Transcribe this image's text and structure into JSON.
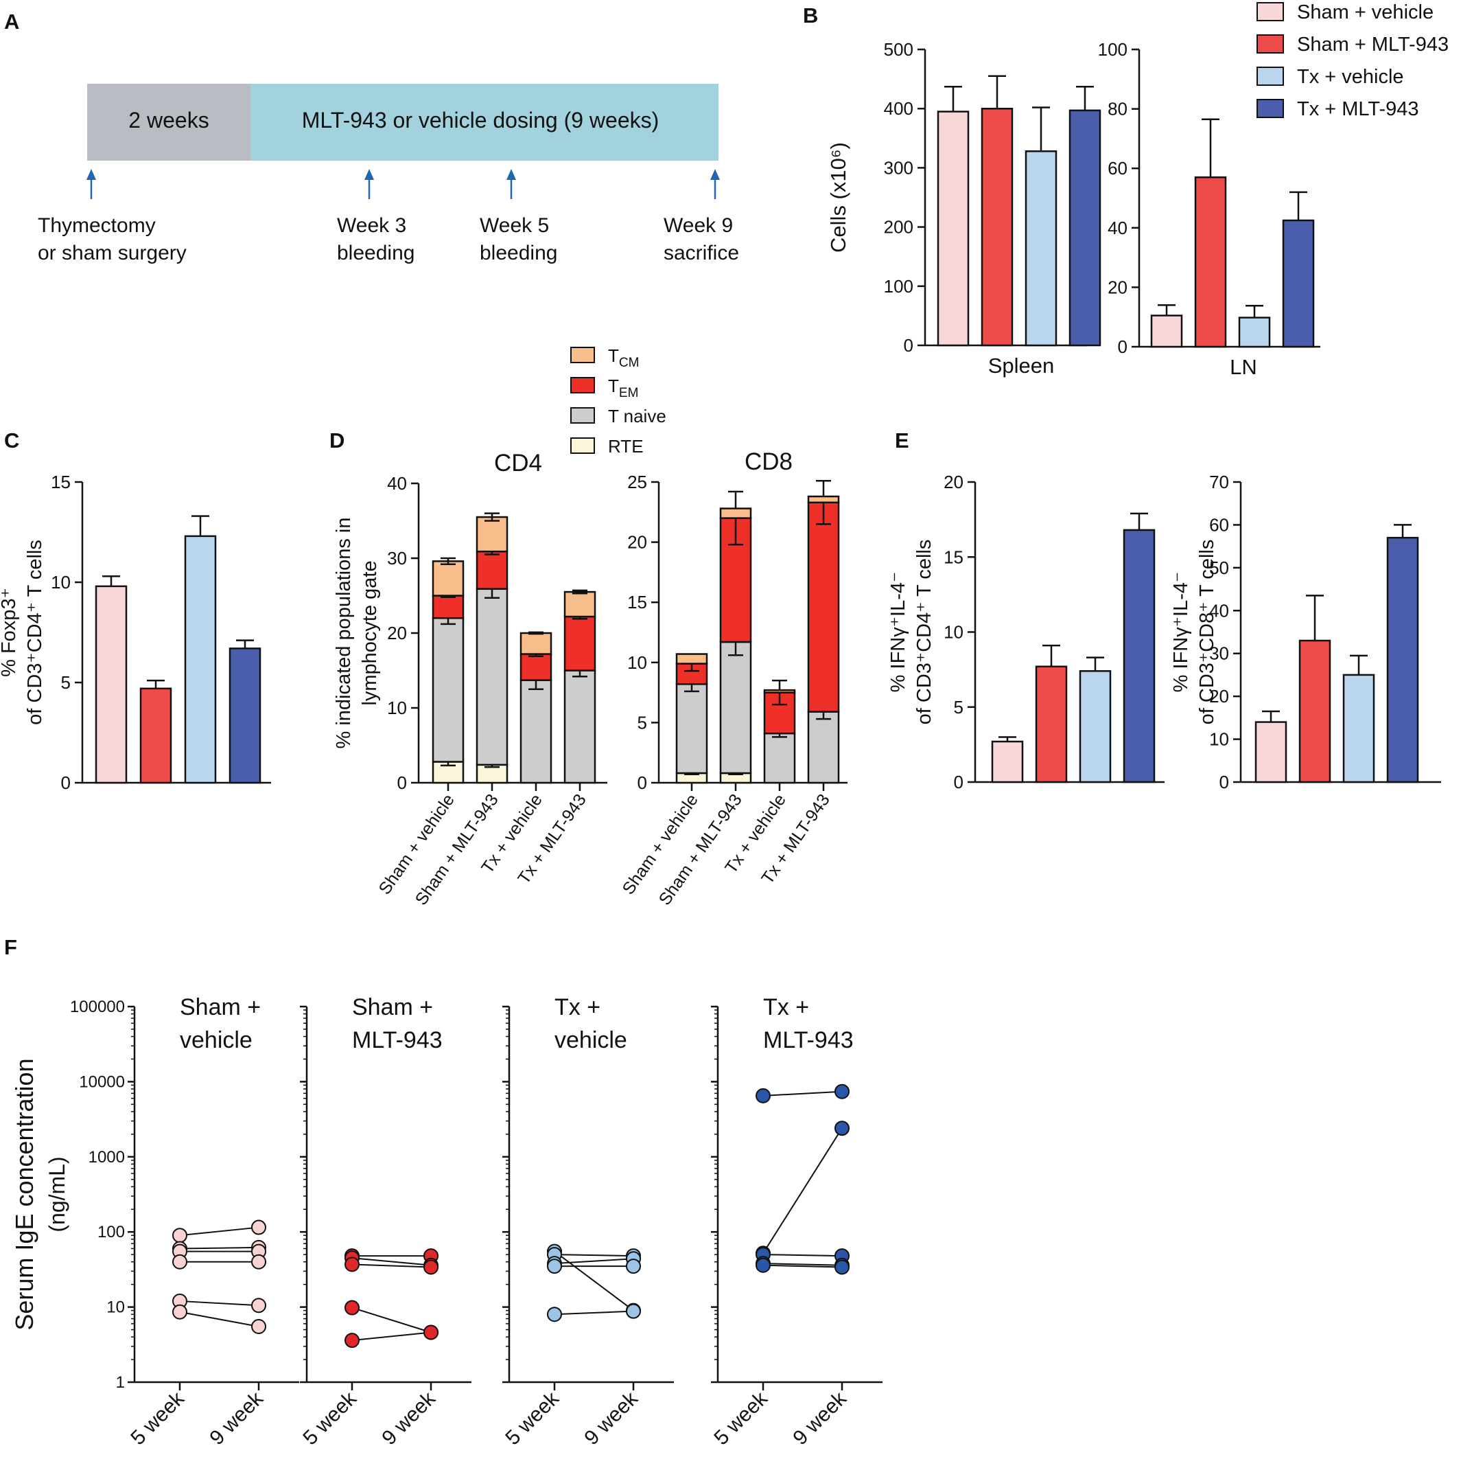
{
  "colors": {
    "sham_vehicle": "#f9d7d8",
    "sham_mlt": "#ee4b4b",
    "tx_vehicle": "#b9d6ee",
    "tx_mlt": "#4b5eac",
    "f_sham_vehicle": "#f8d3d3",
    "f_sham_mlt": "#e02828",
    "f_tx_vehicle": "#9cc4e8",
    "f_tx_mlt": "#2a56a8",
    "tcm": "#f8bf8c",
    "tem": "#ee3028",
    "tnaive": "#cdcdcd",
    "rte": "#fbf6da",
    "timeline_grey": "#babcc4",
    "timeline_teal": "#a2d2de",
    "arrow": "#2066b0"
  },
  "panel_labels": [
    "A",
    "B",
    "C",
    "D",
    "E",
    "F"
  ],
  "groups": [
    "Sham + vehicle",
    "Sham + MLT-943",
    "Tx + vehicle",
    "Tx + MLT-943"
  ],
  "panel_a": {
    "bar1_label": "2 weeks",
    "bar2_label": "MLT-943 or vehicle dosing (9 weeks)",
    "events": [
      {
        "line1": "Thymectomy",
        "line2": "or sham surgery"
      },
      {
        "line1": "Week 3",
        "line2": "bleeding"
      },
      {
        "line1": "Week 5",
        "line2": "bleeding"
      },
      {
        "line1": "Week 9",
        "line2": "sacrifice"
      }
    ]
  },
  "legend_b": [
    "Sham + vehicle",
    "Sham + MLT-943",
    "Tx + vehicle",
    "Tx + MLT-943"
  ],
  "legend_d": [
    {
      "main": "T",
      "sub": "CM"
    },
    {
      "main": "T",
      "sub": "EM"
    },
    {
      "main": "T naive",
      "sub": ""
    },
    {
      "main": "RTE",
      "sub": ""
    }
  ],
  "chart_data": [
    {
      "id": "B-spleen",
      "type": "bar",
      "ylabel": "Cells (x10⁶)",
      "xlabel": "Spleen",
      "ylim": [
        0,
        500
      ],
      "yticks": [
        0,
        100,
        200,
        300,
        400,
        500
      ],
      "categories": [
        "Sham + vehicle",
        "Sham + MLT-943",
        "Tx + vehicle",
        "Tx + MLT-943"
      ],
      "values": [
        395,
        400,
        328,
        397
      ],
      "errors": [
        42,
        55,
        74,
        40
      ]
    },
    {
      "id": "B-LN",
      "type": "bar",
      "ylabel": "",
      "xlabel": "LN",
      "ylim": [
        0,
        100
      ],
      "yticks": [
        0,
        20,
        40,
        60,
        80,
        100
      ],
      "categories": [
        "Sham + vehicle",
        "Sham + MLT-943",
        "Tx + vehicle",
        "Tx + MLT-943"
      ],
      "values": [
        10.5,
        57,
        9.8,
        42.5
      ],
      "errors": [
        3.5,
        19.5,
        4,
        9.5
      ]
    },
    {
      "id": "C",
      "type": "bar",
      "ylabel_line1": "% Foxp3⁺",
      "ylabel_line2": "of CD3⁺CD4⁺ T cells",
      "ylim": [
        0,
        15
      ],
      "yticks": [
        0,
        5,
        10,
        15
      ],
      "categories": [
        "Sham + vehicle",
        "Sham + MLT-943",
        "Tx + vehicle",
        "Tx + MLT-943"
      ],
      "values": [
        9.8,
        4.7,
        12.3,
        6.7
      ],
      "errors": [
        0.5,
        0.4,
        1.0,
        0.4
      ]
    },
    {
      "id": "D-CD4",
      "type": "bar",
      "stacked": true,
      "title": "CD4",
      "ylabel_line1": "% indicated populations in",
      "ylabel_line2": "lymphocyte gate",
      "ylim": [
        0,
        40
      ],
      "yticks": [
        0,
        10,
        20,
        30,
        40
      ],
      "categories": [
        "Sham + vehicle",
        "Sham + MLT-943",
        "Tx + vehicle",
        "Tx + MLT-943"
      ],
      "series": [
        {
          "name": "RTE",
          "values": [
            2.8,
            2.4,
            0,
            0
          ],
          "errors": [
            0.5,
            0.3,
            0,
            0
          ]
        },
        {
          "name": "T naive",
          "values": [
            19.2,
            23.5,
            13.7,
            15.0
          ],
          "errors": [
            0.8,
            1.2,
            1.2,
            0.8
          ]
        },
        {
          "name": "TEM",
          "values": [
            3.0,
            5.0,
            3.5,
            7.2
          ],
          "errors": [
            0.2,
            0.4,
            0.3,
            0.3
          ]
        },
        {
          "name": "TCM",
          "values": [
            4.6,
            4.6,
            2.8,
            3.3
          ],
          "errors": [
            0.4,
            0.5,
            0.1,
            0.2
          ]
        }
      ]
    },
    {
      "id": "D-CD8",
      "type": "bar",
      "stacked": true,
      "title": "CD8",
      "ylim": [
        0,
        25
      ],
      "yticks": [
        0,
        5,
        10,
        15,
        20,
        25
      ],
      "categories": [
        "Sham + vehicle",
        "Sham + MLT-943",
        "Tx + vehicle",
        "Tx + MLT-943"
      ],
      "series": [
        {
          "name": "RTE",
          "values": [
            0.8,
            0.8,
            0,
            0
          ],
          "errors": [
            0.1,
            0.1,
            0,
            0
          ]
        },
        {
          "name": "T naive",
          "values": [
            7.4,
            10.9,
            4.1,
            5.9
          ],
          "errors": [
            0.6,
            1.1,
            0.3,
            0.6
          ]
        },
        {
          "name": "TEM",
          "values": [
            1.7,
            10.3,
            3.4,
            17.4
          ],
          "errors": [
            0.6,
            2.2,
            1.0,
            1.8
          ]
        },
        {
          "name": "TCM",
          "values": [
            0.8,
            0.8,
            0.2,
            0.5
          ],
          "errors": [
            0,
            0,
            0,
            0
          ]
        }
      ]
    },
    {
      "id": "E-CD4",
      "type": "bar",
      "ylabel_line1": "% IFNγ⁺IL-4⁻",
      "ylabel_line2": "of CD3⁺CD4⁺ T cells",
      "ylim": [
        0,
        20
      ],
      "yticks": [
        0,
        5,
        10,
        15,
        20
      ],
      "categories": [
        "Sham + vehicle",
        "Sham + MLT-943",
        "Tx + vehicle",
        "Tx + MLT-943"
      ],
      "values": [
        2.7,
        7.7,
        7.4,
        16.8
      ],
      "errors": [
        0.3,
        1.4,
        0.9,
        1.1
      ]
    },
    {
      "id": "E-CD8",
      "type": "bar",
      "ylabel_line1": "% IFNγ⁺IL-4⁻",
      "ylabel_line2": "of CD3⁺CD8⁺ T cells",
      "ylim": [
        0,
        70
      ],
      "yticks": [
        0,
        10,
        20,
        30,
        40,
        50,
        60,
        70
      ],
      "categories": [
        "Sham + vehicle",
        "Sham + MLT-943",
        "Tx + vehicle",
        "Tx + MLT-943"
      ],
      "values": [
        14,
        33,
        25,
        57
      ],
      "errors": [
        2.5,
        10.5,
        4.5,
        3
      ]
    },
    {
      "id": "F",
      "type": "scatter",
      "ylabel_line1": "Serum IgE concentration",
      "ylabel_line2": "(ng/mL)",
      "yscale": "log",
      "ylim": [
        1,
        100000
      ],
      "yticks": [
        "1",
        "10",
        "100",
        "1000",
        "10000",
        "100000"
      ],
      "x": [
        "5 week",
        "9 week"
      ],
      "panels": [
        {
          "title_line1": "Sham +",
          "title_line2": "vehicle",
          "pairs": [
            [
              90,
              115
            ],
            [
              60,
              62
            ],
            [
              55,
              55
            ],
            [
              40,
              40
            ],
            [
              12,
              10.5
            ],
            [
              8.6,
              5.5
            ]
          ]
        },
        {
          "title_line1": "Sham +",
          "title_line2": "MLT-943",
          "pairs": [
            [
              48,
              48
            ],
            [
              45,
              36
            ],
            [
              37,
              34
            ],
            [
              9.8,
              4.6
            ],
            [
              3.6,
              4.6
            ]
          ]
        },
        {
          "title_line1": "Tx +",
          "title_line2": "vehicle",
          "pairs": [
            [
              55,
              9
            ],
            [
              50,
              48
            ],
            [
              38,
              44
            ],
            [
              35,
              35
            ],
            [
              8,
              8.8
            ]
          ]
        },
        {
          "title_line1": "Tx +",
          "title_line2": "MLT-943",
          "pairs": [
            [
              6500,
              7400
            ],
            [
              52,
              2400
            ],
            [
              50,
              48
            ],
            [
              38,
              36
            ],
            [
              36,
              34
            ]
          ]
        }
      ]
    }
  ]
}
